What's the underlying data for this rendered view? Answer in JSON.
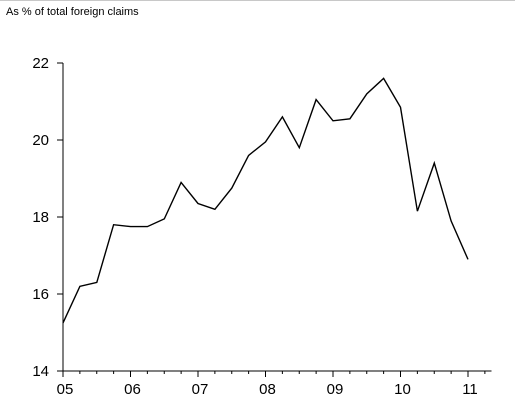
{
  "chart_data": {
    "type": "line",
    "title": "As % of total foreign claims",
    "xlabel": "",
    "ylabel": "",
    "x_tick_labels": [
      "05",
      "06",
      "07",
      "08",
      "09",
      "10",
      "11"
    ],
    "y_tick_labels": [
      "14",
      "16",
      "18",
      "20",
      "22"
    ],
    "ylim": [
      14,
      22
    ],
    "xlim": [
      2005,
      2011.2
    ],
    "grid": false,
    "legend": "none",
    "line_color": "#000000",
    "series": [
      {
        "values": [
          {
            "x": 2005.0,
            "y": 15.25
          },
          {
            "x": 2005.25,
            "y": 16.2
          },
          {
            "x": 2005.5,
            "y": 16.3
          },
          {
            "x": 2005.75,
            "y": 17.8
          },
          {
            "x": 2006.0,
            "y": 17.75
          },
          {
            "x": 2006.25,
            "y": 17.75
          },
          {
            "x": 2006.5,
            "y": 17.95
          },
          {
            "x": 2006.75,
            "y": 18.9
          },
          {
            "x": 2007.0,
            "y": 18.35
          },
          {
            "x": 2007.25,
            "y": 18.2
          },
          {
            "x": 2007.5,
            "y": 18.75
          },
          {
            "x": 2007.75,
            "y": 19.6
          },
          {
            "x": 2008.0,
            "y": 19.95
          },
          {
            "x": 2008.25,
            "y": 20.6
          },
          {
            "x": 2008.5,
            "y": 19.8
          },
          {
            "x": 2008.75,
            "y": 21.05
          },
          {
            "x": 2009.0,
            "y": 20.5
          },
          {
            "x": 2009.25,
            "y": 20.55
          },
          {
            "x": 2009.5,
            "y": 21.2
          },
          {
            "x": 2009.75,
            "y": 21.6
          },
          {
            "x": 2010.0,
            "y": 20.85
          },
          {
            "x": 2010.25,
            "y": 18.15
          },
          {
            "x": 2010.5,
            "y": 19.4
          },
          {
            "x": 2010.75,
            "y": 17.9
          },
          {
            "x": 2011.0,
            "y": 16.9
          }
        ]
      }
    ]
  }
}
